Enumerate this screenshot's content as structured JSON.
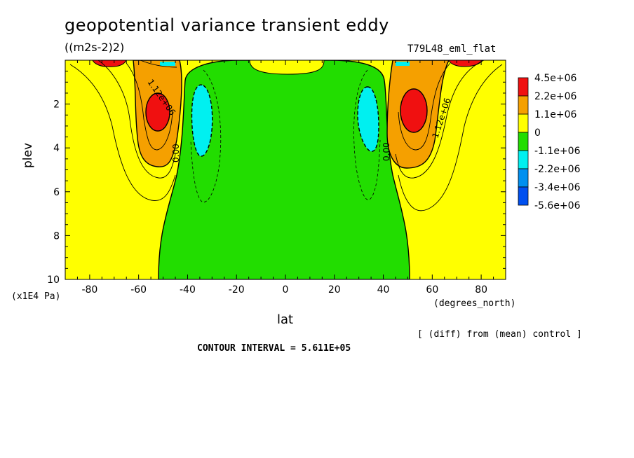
{
  "title": "geopotential variance transient eddy",
  "units": "((m2s-2)2)",
  "run_name": "T79L48_eml_flat",
  "ylabel": "plev",
  "y_multiplier": "(x1E4 Pa)",
  "xlabel": "lat",
  "x_units": "(degrees_north)",
  "diff_note": "[ (diff) from (mean) control ]",
  "contour_interval": "CONTOUR INTERVAL = 5.611E+05",
  "contour_labels": [
    "1.12e+06",
    "0.00",
    "0.00",
    "1.12e+06"
  ],
  "colors": {
    "red": "#f01010",
    "orange": "#f5a000",
    "yellow": "#ffff00",
    "green": "#22dd00",
    "cyan": "#00f0f0",
    "blue": "#0090f0",
    "dark_blue": "#0050f0"
  },
  "chart_data": {
    "type": "heatmap",
    "xlim": [
      -90,
      90
    ],
    "ylim": [
      10,
      0
    ],
    "xticks": [
      "-80",
      "-60",
      "-40",
      "-20",
      "0",
      "20",
      "40",
      "60",
      "80"
    ],
    "xtick_values": [
      -80,
      -60,
      -40,
      -20,
      0,
      20,
      40,
      60,
      80
    ],
    "yticks": [
      "2",
      "4",
      "6",
      "8",
      "10"
    ],
    "ytick_values": [
      2,
      4,
      6,
      8,
      10
    ],
    "legend": {
      "placement": "right",
      "labels": [
        "4.5e+06",
        "2.2e+06",
        "1.1e+06",
        "0",
        "-1.1e+06",
        "-2.2e+06",
        "-3.4e+06",
        "-5.6e+06"
      ],
      "colors": [
        "#f01010",
        "#f5a000",
        "#ffff00",
        "#22dd00",
        "#00f0f0",
        "#0090f0",
        "#0050f0",
        "#0050f0"
      ]
    },
    "features": [
      {
        "name": "sh-maximum",
        "lat": -51,
        "plev": 2.5,
        "value": 2500000.0
      },
      {
        "name": "nh-maximum",
        "lat": 52,
        "plev": 2.4,
        "value": 2500000.0
      },
      {
        "name": "sh-minimum",
        "lat": -35,
        "plev": 2.6,
        "value": -1200000.0
      },
      {
        "name": "nh-minimum",
        "lat": 34,
        "plev": 2.5,
        "value": -1200000.0
      }
    ]
  }
}
